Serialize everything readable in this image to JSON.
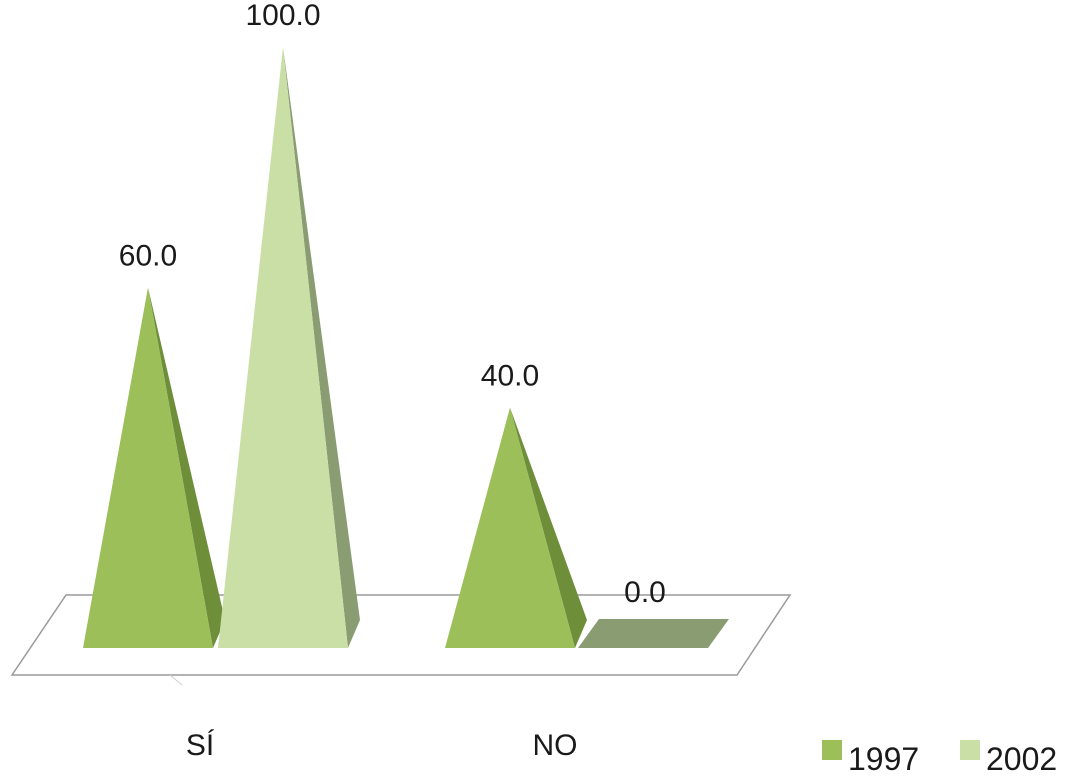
{
  "chart_data": {
    "type": "bar",
    "shape": "3d-pyramid",
    "categories": [
      "SÍ",
      "NO"
    ],
    "series": [
      {
        "name": "1997",
        "values": [
          60.0,
          40.0
        ],
        "color": "#9cbf5a",
        "shade_color": "#6e8e3a"
      },
      {
        "name": "2002",
        "values": [
          100.0,
          0.0
        ],
        "color": "#c9dfa6",
        "shade_color": "#8a9c72"
      }
    ],
    "value_labels": [
      [
        "60.0",
        "40.0"
      ],
      [
        "100.0",
        "0.0"
      ]
    ],
    "ylim": [
      0,
      100
    ],
    "grid": false,
    "legend_position": "bottom-right",
    "floor_color": "#ffffff",
    "floor_stroke": "#9a9a9a"
  }
}
